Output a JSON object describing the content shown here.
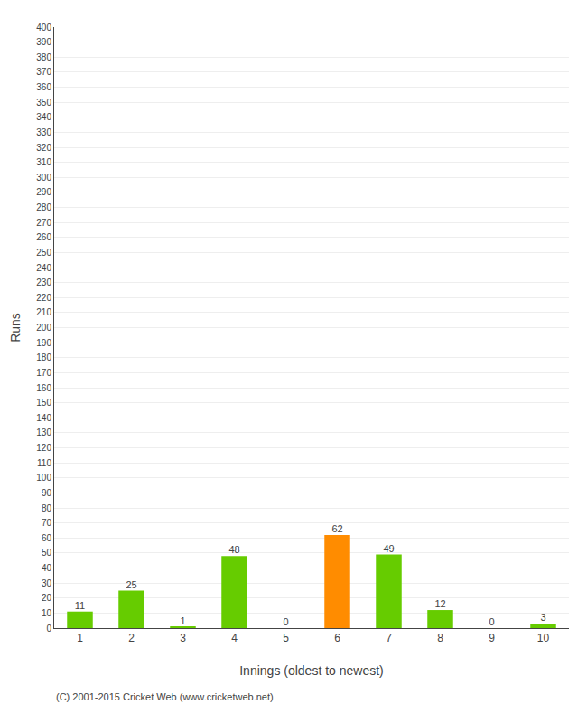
{
  "chart_data": {
    "type": "bar",
    "xlabel": "Innings (oldest to newest)",
    "ylabel": "Runs",
    "categories": [
      "1",
      "2",
      "3",
      "4",
      "5",
      "6",
      "7",
      "8",
      "9",
      "10"
    ],
    "values": [
      11,
      25,
      1,
      48,
      0,
      62,
      49,
      12,
      0,
      3
    ],
    "colors": [
      "#66cc00",
      "#66cc00",
      "#66cc00",
      "#66cc00",
      "#66cc00",
      "#ff8c00",
      "#66cc00",
      "#66cc00",
      "#66cc00",
      "#66cc00"
    ],
    "ylim": [
      0,
      400
    ],
    "yticks": [
      0,
      10,
      20,
      30,
      40,
      50,
      60,
      70,
      80,
      90,
      100,
      110,
      120,
      130,
      140,
      150,
      160,
      170,
      180,
      190,
      200,
      210,
      220,
      230,
      240,
      250,
      260,
      270,
      280,
      290,
      300,
      310,
      320,
      330,
      340,
      350,
      360,
      370,
      380,
      390,
      400
    ],
    "grid": true,
    "data_labels": true,
    "annotations": [
      "(C) 2001-2015 Cricket Web (www.cricketweb.net)"
    ]
  }
}
